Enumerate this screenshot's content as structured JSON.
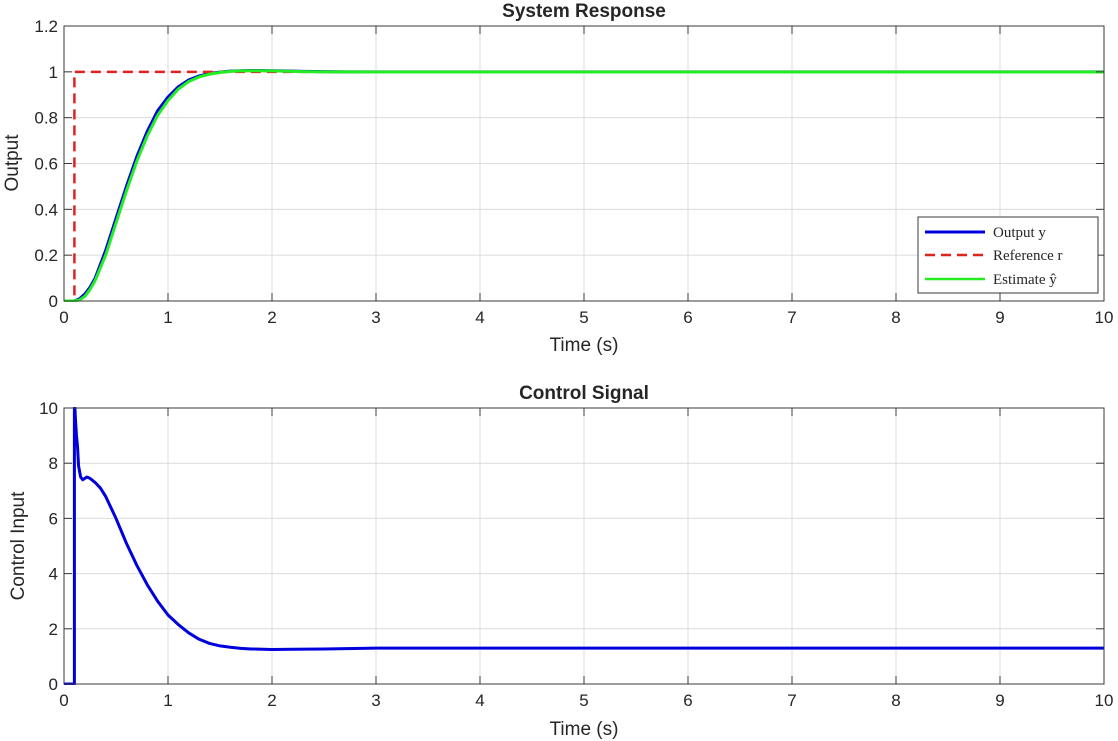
{
  "chart_data": [
    {
      "type": "line",
      "title": "System Response",
      "xlabel": "Time (s)",
      "ylabel": "Output",
      "xlim": [
        0,
        10
      ],
      "ylim": [
        0,
        1.2
      ],
      "xticks": [
        "0",
        "1",
        "2",
        "3",
        "4",
        "5",
        "6",
        "7",
        "8",
        "9",
        "10"
      ],
      "yticks": [
        "0",
        "0.2",
        "0.4",
        "0.6",
        "0.8",
        "1",
        "1.2"
      ],
      "grid": true,
      "legend_position": "bottom-right",
      "series": [
        {
          "name": "Output y",
          "color": "#0000dd",
          "style": "solid",
          "x": [
            0,
            0.1,
            0.15,
            0.2,
            0.25,
            0.3,
            0.4,
            0.5,
            0.6,
            0.7,
            0.8,
            0.9,
            1.0,
            1.1,
            1.2,
            1.3,
            1.4,
            1.5,
            1.6,
            1.7,
            1.8,
            1.9,
            2.0,
            2.1,
            2.2,
            2.3,
            2.5,
            2.7,
            3.0,
            4.0,
            5.0,
            6.0,
            7.0,
            8.0,
            9.0,
            10.0
          ],
          "values": [
            0,
            0,
            0.01,
            0.03,
            0.06,
            0.1,
            0.22,
            0.36,
            0.5,
            0.63,
            0.74,
            0.83,
            0.89,
            0.935,
            0.965,
            0.982,
            0.993,
            0.999,
            1.003,
            1.005,
            1.006,
            1.006,
            1.005,
            1.004,
            1.003,
            1.002,
            1.001,
            1.0,
            1.0,
            1.0,
            1.0,
            1.0,
            1.0,
            1.0,
            1.0,
            1.0
          ]
        },
        {
          "name": "Reference r",
          "color": "#dd2222",
          "style": "dashed",
          "x": [
            0,
            0.1,
            0.1,
            10
          ],
          "values": [
            0,
            0,
            1,
            1
          ]
        },
        {
          "name": "Estimate ŷ",
          "color": "#22ee22",
          "style": "solid",
          "x": [
            0,
            0.1,
            0.15,
            0.2,
            0.25,
            0.3,
            0.4,
            0.5,
            0.6,
            0.7,
            0.8,
            0.9,
            1.0,
            1.1,
            1.2,
            1.3,
            1.4,
            1.5,
            1.6,
            1.7,
            1.8,
            1.9,
            2.0,
            2.1,
            2.2,
            2.3,
            2.5,
            2.7,
            3.0,
            4.0,
            5.0,
            6.0,
            7.0,
            8.0,
            9.0,
            10.0
          ],
          "values": [
            0,
            0,
            0.005,
            0.02,
            0.05,
            0.09,
            0.2,
            0.34,
            0.48,
            0.61,
            0.72,
            0.81,
            0.875,
            0.925,
            0.958,
            0.978,
            0.99,
            0.997,
            1.002,
            1.004,
            1.005,
            1.005,
            1.004,
            1.003,
            1.002,
            1.001,
            1.0,
            1.0,
            0.999,
            0.999,
            0.999,
            0.999,
            0.999,
            0.999,
            0.999,
            0.999
          ]
        }
      ]
    },
    {
      "type": "line",
      "title": "Control Signal",
      "xlabel": "Time (s)",
      "ylabel": "Control Input",
      "xlim": [
        0,
        10
      ],
      "ylim": [
        0,
        10
      ],
      "xticks": [
        "0",
        "1",
        "2",
        "3",
        "4",
        "5",
        "6",
        "7",
        "8",
        "9",
        "10"
      ],
      "yticks": [
        "0",
        "2",
        "4",
        "6",
        "8",
        "10"
      ],
      "grid": true,
      "series": [
        {
          "name": "",
          "color": "#0000dd",
          "style": "solid",
          "x": [
            0,
            0.1,
            0.1,
            0.105,
            0.11,
            0.12,
            0.13,
            0.14,
            0.16,
            0.18,
            0.2,
            0.22,
            0.25,
            0.3,
            0.35,
            0.4,
            0.5,
            0.6,
            0.7,
            0.8,
            0.9,
            1.0,
            1.1,
            1.2,
            1.3,
            1.4,
            1.5,
            1.6,
            1.7,
            1.8,
            2.0,
            2.2,
            2.5,
            3.0,
            4.0,
            5.0,
            6.0,
            7.0,
            8.0,
            9.0,
            10.0
          ],
          "values": [
            0,
            0,
            10,
            10,
            9.6,
            9.0,
            8.6,
            7.9,
            7.5,
            7.4,
            7.45,
            7.5,
            7.45,
            7.3,
            7.1,
            6.8,
            6.0,
            5.1,
            4.3,
            3.6,
            3.0,
            2.5,
            2.15,
            1.85,
            1.62,
            1.47,
            1.38,
            1.33,
            1.29,
            1.27,
            1.25,
            1.26,
            1.27,
            1.3,
            1.3,
            1.3,
            1.3,
            1.3,
            1.3,
            1.3,
            1.3
          ]
        }
      ]
    }
  ]
}
